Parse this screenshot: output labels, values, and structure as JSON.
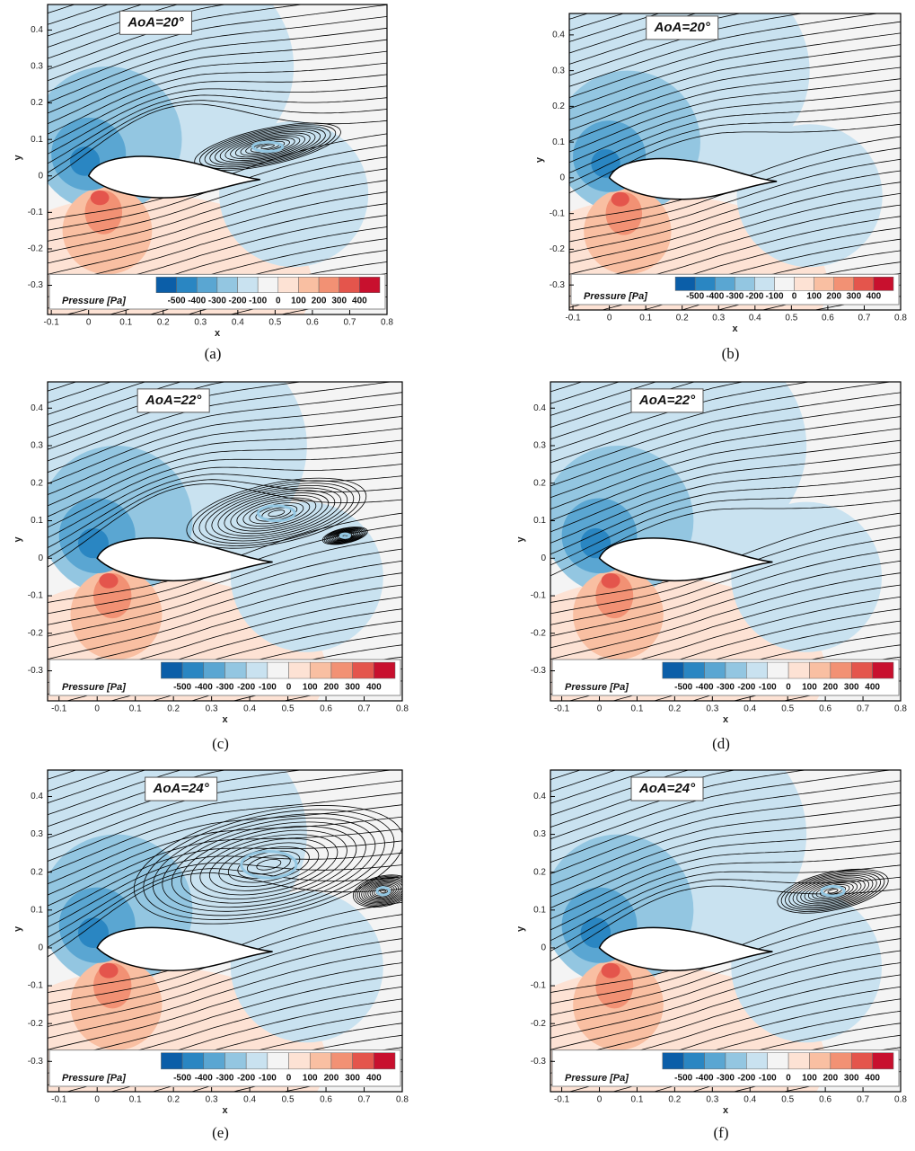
{
  "chart_data": [
    {
      "type": "contour",
      "panel_label": "(a)",
      "annotation": "AoA=20°",
      "xlabel": "x",
      "ylabel": "y",
      "xlim": [
        -0.11,
        0.8
      ],
      "ylim": [
        -0.38,
        0.47
      ],
      "xticks": [
        -0.1,
        0,
        0.1,
        0.2,
        0.3,
        0.4,
        0.5,
        0.6,
        0.7,
        0.8
      ],
      "yticks": [
        -0.3,
        -0.2,
        -0.1,
        0,
        0.1,
        0.2,
        0.3,
        0.4
      ],
      "colorbar": {
        "label": "Pressure [Pa]",
        "ticks": [
          -500,
          -400,
          -300,
          -200,
          -100,
          0,
          100,
          200,
          300,
          400
        ],
        "colors": [
          "#0b5ea8",
          "#2a86c2",
          "#5aa6d2",
          "#93c6e1",
          "#c9e2f0",
          "#f4f4f4",
          "#fde2d4",
          "#f9bfa2",
          "#f29174",
          "#e4554c",
          "#c8102e"
        ]
      }
    },
    {
      "type": "contour",
      "panel_label": "(b)",
      "annotation": "AoA=20°",
      "xlabel": "x",
      "ylabel": "y",
      "xlim": [
        -0.11,
        0.8
      ],
      "ylim": [
        -0.37,
        0.46
      ],
      "xticks": [
        -0.1,
        0,
        0.1,
        0.2,
        0.3,
        0.4,
        0.5,
        0.6,
        0.7,
        0.8
      ],
      "yticks": [
        -0.3,
        -0.2,
        -0.1,
        0,
        0.1,
        0.2,
        0.3,
        0.4
      ],
      "colorbar": {
        "label": "Pressure [Pa]",
        "ticks": [
          -500,
          -400,
          -300,
          -200,
          -100,
          0,
          100,
          200,
          300,
          400
        ],
        "colors": [
          "#0b5ea8",
          "#2a86c2",
          "#5aa6d2",
          "#93c6e1",
          "#c9e2f0",
          "#f4f4f4",
          "#fde2d4",
          "#f9bfa2",
          "#f29174",
          "#e4554c",
          "#c8102e"
        ]
      }
    },
    {
      "type": "contour",
      "panel_label": "(c)",
      "annotation": "AoA=22°",
      "xlabel": "x",
      "ylabel": "y",
      "xlim": [
        -0.13,
        0.8
      ],
      "ylim": [
        -0.38,
        0.47
      ],
      "xticks": [
        -0.1,
        0,
        0.1,
        0.2,
        0.3,
        0.4,
        0.5,
        0.6,
        0.7,
        0.8
      ],
      "yticks": [
        -0.3,
        -0.2,
        -0.1,
        0,
        0.1,
        0.2,
        0.3,
        0.4
      ],
      "colorbar": {
        "label": "Pressure [Pa]",
        "ticks": [
          -500,
          -400,
          -300,
          -200,
          -100,
          0,
          100,
          200,
          300,
          400
        ],
        "colors": [
          "#0b5ea8",
          "#2a86c2",
          "#5aa6d2",
          "#93c6e1",
          "#c9e2f0",
          "#f4f4f4",
          "#fde2d4",
          "#f9bfa2",
          "#f29174",
          "#e4554c",
          "#c8102e"
        ]
      }
    },
    {
      "type": "contour",
      "panel_label": "(d)",
      "annotation": "AoA=22°",
      "xlabel": "x",
      "ylabel": "y",
      "xlim": [
        -0.13,
        0.8
      ],
      "ylim": [
        -0.38,
        0.47
      ],
      "xticks": [
        -0.1,
        0,
        0.1,
        0.2,
        0.3,
        0.4,
        0.5,
        0.6,
        0.7,
        0.8
      ],
      "yticks": [
        -0.3,
        -0.2,
        -0.1,
        0,
        0.1,
        0.2,
        0.3,
        0.4
      ],
      "colorbar": {
        "label": "Pressure [Pa]",
        "ticks": [
          -500,
          -400,
          -300,
          -200,
          -100,
          0,
          100,
          200,
          300,
          400
        ],
        "colors": [
          "#0b5ea8",
          "#2a86c2",
          "#5aa6d2",
          "#93c6e1",
          "#c9e2f0",
          "#f4f4f4",
          "#fde2d4",
          "#f9bfa2",
          "#f29174",
          "#e4554c",
          "#c8102e"
        ]
      }
    },
    {
      "type": "contour",
      "panel_label": "(e)",
      "annotation": "AoA=24°",
      "xlabel": "x",
      "ylabel": "y",
      "xlim": [
        -0.13,
        0.8
      ],
      "ylim": [
        -0.38,
        0.47
      ],
      "xticks": [
        -0.1,
        0,
        0.1,
        0.2,
        0.3,
        0.4,
        0.5,
        0.6,
        0.7,
        0.8
      ],
      "yticks": [
        -0.3,
        -0.2,
        -0.1,
        0,
        0.1,
        0.2,
        0.3,
        0.4
      ],
      "colorbar": {
        "label": "Pressure [Pa]",
        "ticks": [
          -500,
          -400,
          -300,
          -200,
          -100,
          0,
          100,
          200,
          300,
          400
        ],
        "colors": [
          "#0b5ea8",
          "#2a86c2",
          "#5aa6d2",
          "#93c6e1",
          "#c9e2f0",
          "#f4f4f4",
          "#fde2d4",
          "#f9bfa2",
          "#f29174",
          "#e4554c",
          "#c8102e"
        ]
      }
    },
    {
      "type": "contour",
      "panel_label": "(f)",
      "annotation": "AoA=24°",
      "xlabel": "x",
      "ylabel": "y",
      "xlim": [
        -0.13,
        0.8
      ],
      "ylim": [
        -0.38,
        0.47
      ],
      "xticks": [
        -0.1,
        0,
        0.1,
        0.2,
        0.3,
        0.4,
        0.5,
        0.6,
        0.7,
        0.8
      ],
      "yticks": [
        -0.3,
        -0.2,
        -0.1,
        0,
        0.1,
        0.2,
        0.3,
        0.4
      ],
      "colorbar": {
        "label": "Pressure [Pa]",
        "ticks": [
          -500,
          -400,
          -300,
          -200,
          -100,
          0,
          100,
          200,
          300,
          400
        ],
        "colors": [
          "#0b5ea8",
          "#2a86c2",
          "#5aa6d2",
          "#93c6e1",
          "#c9e2f0",
          "#f4f4f4",
          "#fde2d4",
          "#f9bfa2",
          "#f29174",
          "#e4554c",
          "#c8102e"
        ]
      }
    }
  ]
}
